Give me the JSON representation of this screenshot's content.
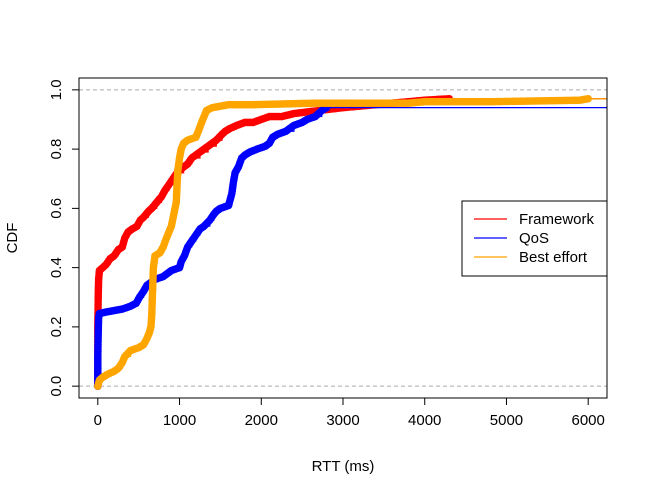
{
  "chart_data": {
    "type": "line",
    "xlabel": "RTT (ms)",
    "ylabel": "CDF",
    "xlim": [
      -230,
      6230
    ],
    "ylim": [
      -0.04,
      1.04
    ],
    "xticks": [
      0,
      1000,
      2000,
      3000,
      4000,
      5000,
      6000
    ],
    "xtick_labels": [
      "0",
      "1000",
      "2000",
      "3000",
      "4000",
      "5000",
      "6000"
    ],
    "yticks": [
      0.0,
      0.2,
      0.4,
      0.6,
      0.8,
      1.0
    ],
    "ytick_labels": [
      "0.0",
      "0.2",
      "0.4",
      "0.6",
      "0.8",
      "1.0"
    ],
    "reference_lines": [
      0,
      1
    ],
    "legend_position": "right",
    "legend": [
      {
        "name": "Framework",
        "color": "#ff0000"
      },
      {
        "name": "QoS",
        "color": "#0000ff"
      },
      {
        "name": "Best effort",
        "color": "#ffa500"
      }
    ],
    "series": [
      {
        "name": "Framework",
        "color": "#ff0000",
        "points": [
          [
            0,
            0.0
          ],
          [
            0,
            0.2
          ],
          [
            5,
            0.3
          ],
          [
            10,
            0.36
          ],
          [
            20,
            0.39
          ],
          [
            60,
            0.4
          ],
          [
            100,
            0.41
          ],
          [
            150,
            0.43
          ],
          [
            200,
            0.44
          ],
          [
            250,
            0.46
          ],
          [
            300,
            0.47
          ],
          [
            330,
            0.5
          ],
          [
            370,
            0.52
          ],
          [
            420,
            0.53
          ],
          [
            480,
            0.54
          ],
          [
            520,
            0.56
          ],
          [
            560,
            0.57
          ],
          [
            620,
            0.59
          ],
          [
            660,
            0.6
          ],
          [
            720,
            0.62
          ],
          [
            780,
            0.64
          ],
          [
            820,
            0.66
          ],
          [
            870,
            0.68
          ],
          [
            920,
            0.7
          ],
          [
            970,
            0.72
          ],
          [
            1050,
            0.74
          ],
          [
            1100,
            0.75
          ],
          [
            1150,
            0.77
          ],
          [
            1250,
            0.79
          ],
          [
            1350,
            0.81
          ],
          [
            1450,
            0.83
          ],
          [
            1520,
            0.85
          ],
          [
            1560,
            0.86
          ],
          [
            1620,
            0.87
          ],
          [
            1700,
            0.88
          ],
          [
            1800,
            0.89
          ],
          [
            1900,
            0.89
          ],
          [
            2000,
            0.9
          ],
          [
            2100,
            0.91
          ],
          [
            2250,
            0.91
          ],
          [
            2400,
            0.92
          ],
          [
            2700,
            0.93
          ],
          [
            3000,
            0.94
          ],
          [
            3200,
            0.945
          ],
          [
            3400,
            0.95
          ],
          [
            3600,
            0.955
          ],
          [
            3800,
            0.96
          ],
          [
            4000,
            0.965
          ],
          [
            4300,
            0.97
          ],
          [
            6230,
            0.97
          ]
        ]
      },
      {
        "name": "QoS",
        "color": "#0000ff",
        "points": [
          [
            0,
            0.0
          ],
          [
            0,
            0.05
          ],
          [
            0,
            0.1
          ],
          [
            5,
            0.18
          ],
          [
            10,
            0.23
          ],
          [
            20,
            0.245
          ],
          [
            100,
            0.25
          ],
          [
            200,
            0.255
          ],
          [
            300,
            0.26
          ],
          [
            400,
            0.27
          ],
          [
            470,
            0.28
          ],
          [
            510,
            0.3
          ],
          [
            560,
            0.32
          ],
          [
            600,
            0.34
          ],
          [
            650,
            0.35
          ],
          [
            700,
            0.36
          ],
          [
            800,
            0.37
          ],
          [
            850,
            0.38
          ],
          [
            900,
            0.39
          ],
          [
            1000,
            0.4
          ],
          [
            1020,
            0.42
          ],
          [
            1060,
            0.44
          ],
          [
            1100,
            0.47
          ],
          [
            1150,
            0.49
          ],
          [
            1200,
            0.51
          ],
          [
            1250,
            0.53
          ],
          [
            1300,
            0.54
          ],
          [
            1370,
            0.56
          ],
          [
            1420,
            0.58
          ],
          [
            1450,
            0.59
          ],
          [
            1500,
            0.6
          ],
          [
            1600,
            0.61
          ],
          [
            1640,
            0.65
          ],
          [
            1660,
            0.69
          ],
          [
            1680,
            0.72
          ],
          [
            1720,
            0.74
          ],
          [
            1760,
            0.77
          ],
          [
            1800,
            0.78
          ],
          [
            1860,
            0.79
          ],
          [
            1950,
            0.8
          ],
          [
            2050,
            0.81
          ],
          [
            2100,
            0.82
          ],
          [
            2140,
            0.84
          ],
          [
            2200,
            0.85
          ],
          [
            2300,
            0.86
          ],
          [
            2400,
            0.88
          ],
          [
            2500,
            0.89
          ],
          [
            2560,
            0.9
          ],
          [
            2660,
            0.91
          ],
          [
            2740,
            0.93
          ],
          [
            2800,
            0.94
          ],
          [
            6230,
            0.945
          ]
        ]
      },
      {
        "name": "Best effort",
        "color": "#ffa500",
        "points": [
          [
            0,
            0.0
          ],
          [
            20,
            0.02
          ],
          [
            60,
            0.03
          ],
          [
            120,
            0.04
          ],
          [
            200,
            0.05
          ],
          [
            250,
            0.06
          ],
          [
            300,
            0.08
          ],
          [
            330,
            0.1
          ],
          [
            400,
            0.12
          ],
          [
            500,
            0.13
          ],
          [
            560,
            0.14
          ],
          [
            600,
            0.16
          ],
          [
            630,
            0.18
          ],
          [
            650,
            0.2
          ],
          [
            660,
            0.24
          ],
          [
            670,
            0.32
          ],
          [
            680,
            0.4
          ],
          [
            700,
            0.44
          ],
          [
            760,
            0.45
          ],
          [
            800,
            0.47
          ],
          [
            840,
            0.5
          ],
          [
            870,
            0.52
          ],
          [
            900,
            0.54
          ],
          [
            930,
            0.58
          ],
          [
            960,
            0.62
          ],
          [
            970,
            0.68
          ],
          [
            980,
            0.73
          ],
          [
            1000,
            0.77
          ],
          [
            1020,
            0.8
          ],
          [
            1050,
            0.82
          ],
          [
            1100,
            0.83
          ],
          [
            1200,
            0.84
          ],
          [
            1230,
            0.86
          ],
          [
            1270,
            0.89
          ],
          [
            1300,
            0.91
          ],
          [
            1330,
            0.93
          ],
          [
            1400,
            0.94
          ],
          [
            1500,
            0.945
          ],
          [
            1600,
            0.95
          ],
          [
            1900,
            0.95
          ],
          [
            2650,
            0.955
          ],
          [
            3800,
            0.955
          ],
          [
            4000,
            0.96
          ],
          [
            4500,
            0.96
          ],
          [
            4800,
            0.96
          ],
          [
            5900,
            0.965
          ],
          [
            6000,
            0.97
          ],
          [
            6230,
            0.97
          ]
        ]
      }
    ]
  }
}
